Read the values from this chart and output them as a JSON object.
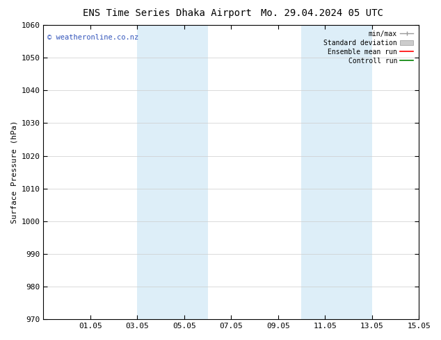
{
  "title_left": "ENS Time Series Dhaka Airport",
  "title_right": "Mo. 29.04.2024 05 UTC",
  "ylabel": "Surface Pressure (hPa)",
  "ylim": [
    970,
    1060
  ],
  "yticks": [
    970,
    980,
    990,
    1000,
    1010,
    1020,
    1030,
    1040,
    1050,
    1060
  ],
  "xtick_labels": [
    "01.05",
    "03.05",
    "05.05",
    "07.05",
    "09.05",
    "11.05",
    "13.05",
    "15.05"
  ],
  "x_min": 0.0,
  "x_max": 16.0,
  "xtick_positions": [
    2.0,
    4.0,
    6.0,
    8.0,
    10.0,
    12.0,
    14.0,
    16.0
  ],
  "shade_regions": [
    {
      "x_start": 4.0,
      "x_end": 7.0
    },
    {
      "x_start": 11.0,
      "x_end": 14.0
    }
  ],
  "shade_color": "#ddeef8",
  "background_color": "#ffffff",
  "watermark_text": "© weatheronline.co.nz",
  "watermark_color": "#3355bb",
  "grid_color": "#cccccc",
  "title_fontsize": 10,
  "label_fontsize": 8,
  "tick_fontsize": 8,
  "legend_fontsize": 7,
  "minmax_color": "#999999",
  "std_color": "#cccccc",
  "ensemble_color": "#ff0000",
  "control_color": "#008000"
}
